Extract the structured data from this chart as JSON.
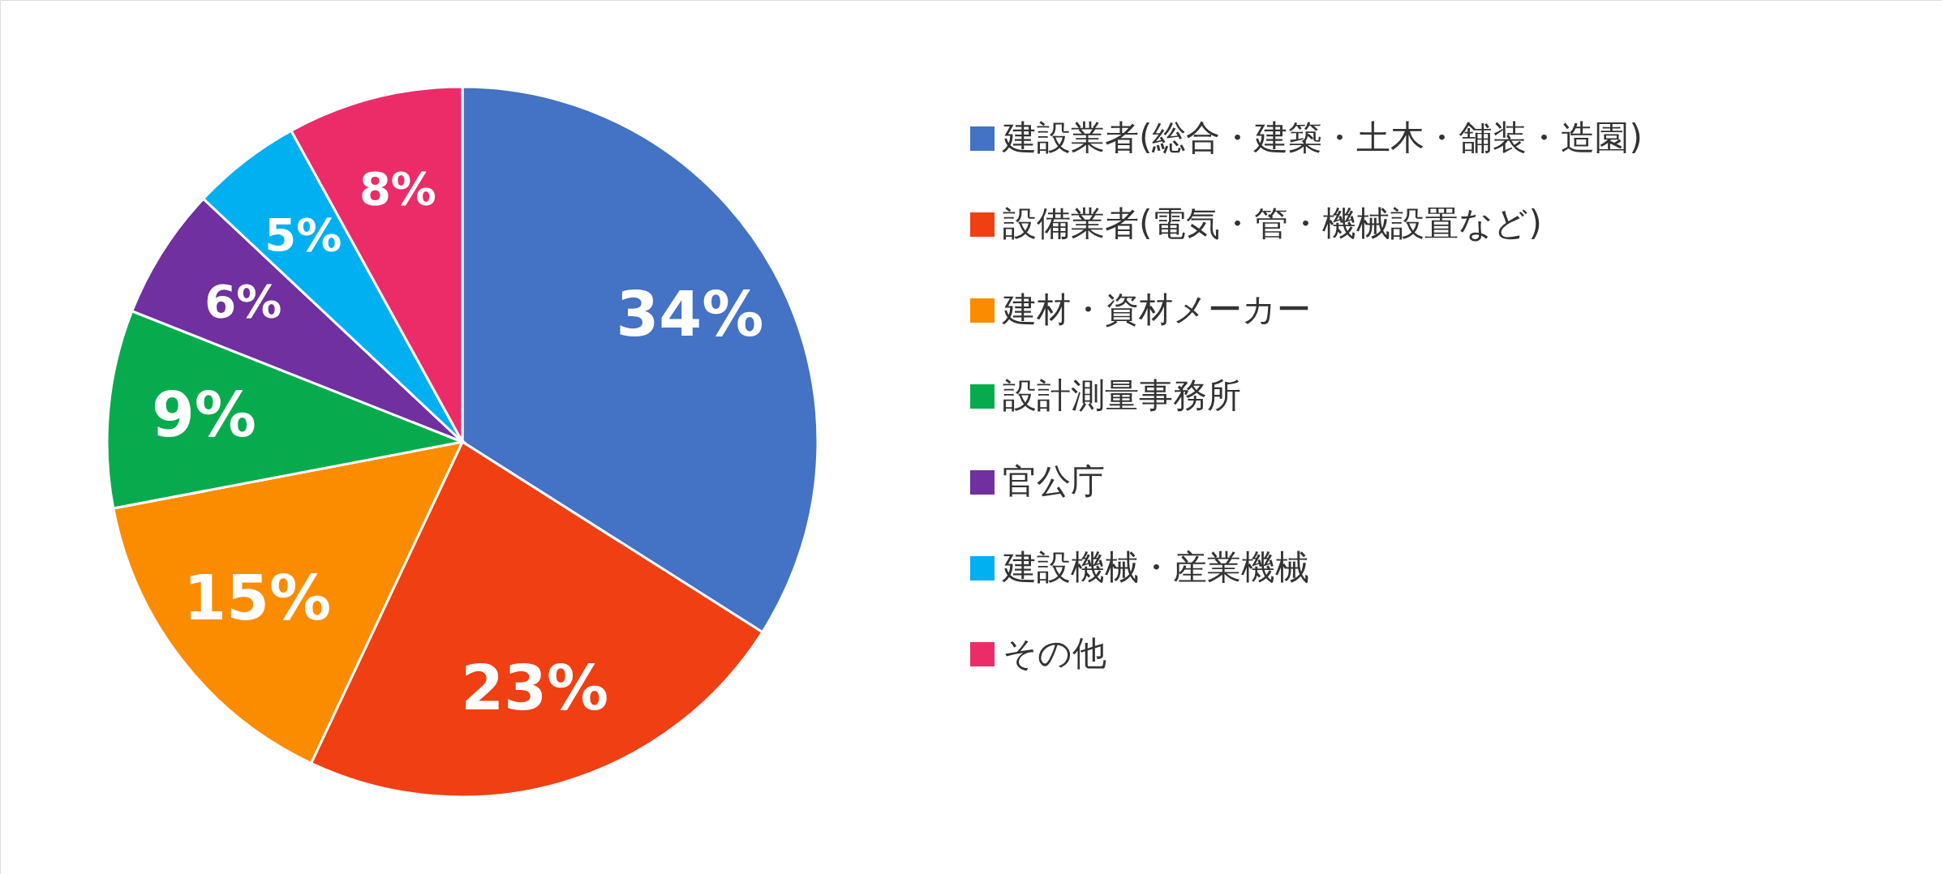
{
  "chart_data": {
    "type": "pie",
    "categories": [
      "建設業者(総合・建築・土木・舗装・造園)",
      "設備業者(電気・管・機械設置など)",
      "建材・資材メーカー",
      "設計測量事務所",
      "官公庁",
      "建設機械・産業機械",
      "その他"
    ],
    "values": [
      34,
      23,
      15,
      9,
      6,
      5,
      8
    ],
    "colors": [
      "#4472c4",
      "#f03f12",
      "#fb8c00",
      "#07ab4e",
      "#7030a0",
      "#00b0f0",
      "#eb2c68"
    ],
    "value_labels": [
      "34%",
      "23%",
      "15%",
      "9%",
      "6%",
      "5%",
      "8%"
    ],
    "legend": "right"
  }
}
